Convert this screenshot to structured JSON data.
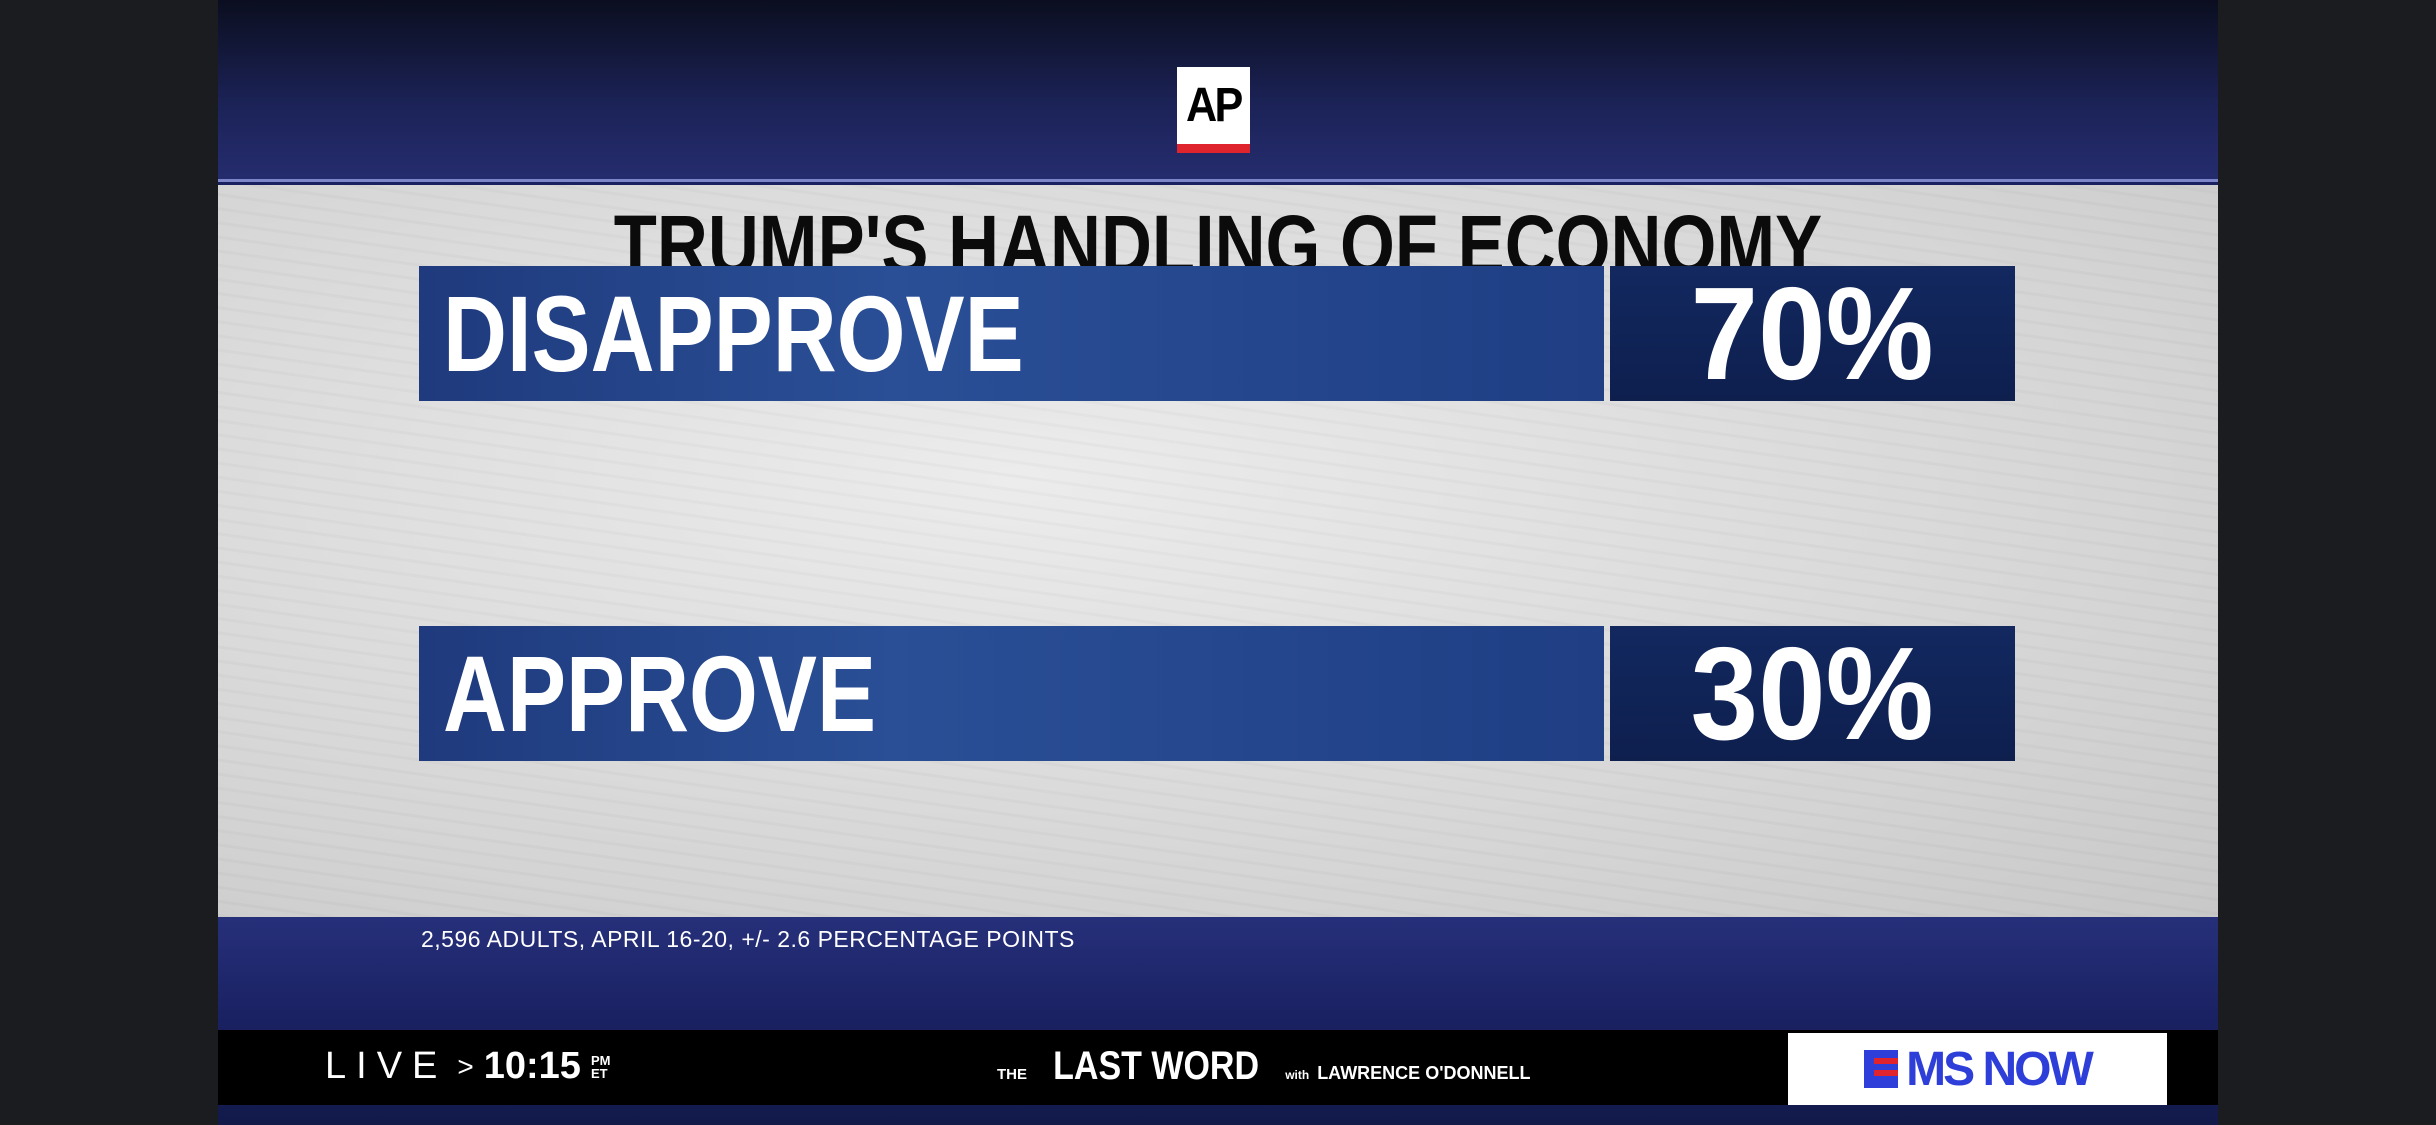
{
  "branding": {
    "source_logo": "AP",
    "network_logo": "MS NOW"
  },
  "chart_data": {
    "type": "bar",
    "title": "TRUMP'S HANDLING OF ECONOMY",
    "categories": [
      "DISAPPROVE",
      "APPROVE"
    ],
    "values": [
      70,
      30
    ],
    "value_labels": [
      "70%",
      "30%"
    ],
    "note": "2,596 ADULTS, APRIL 16-20, +/- 2.6 PERCENTAGE POINTS"
  },
  "ticker": {
    "live": "LIVE",
    "arrow": ">",
    "time": "10:15",
    "ampm": "PM",
    "tz": "ET",
    "show_prefix": "THE",
    "show_name": "LAST WORD",
    "show_with": "with",
    "host": "LAWRENCE O'DONNELL"
  },
  "colors": {
    "bar": "#2a4f96",
    "value_box": "#12285f",
    "accent_red": "#e0242e",
    "msnow_blue": "#2d3fd8"
  }
}
